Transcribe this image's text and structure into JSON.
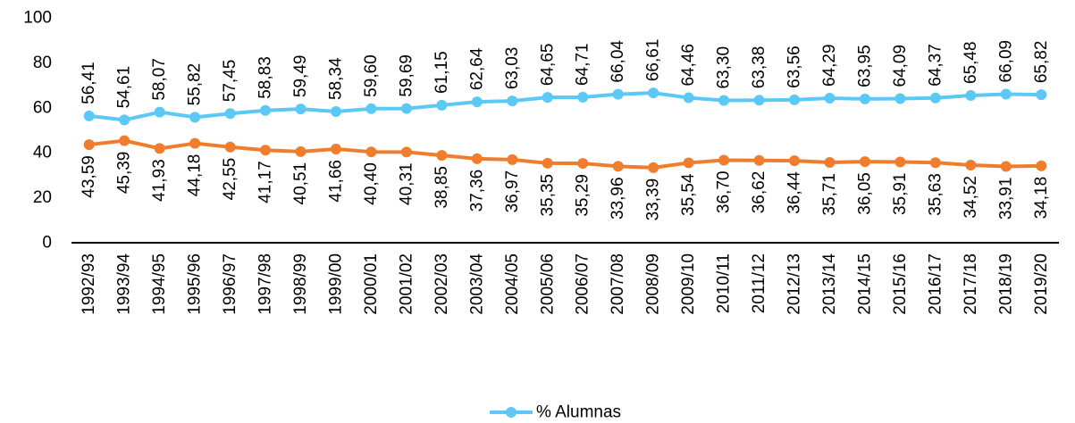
{
  "chart_data": {
    "type": "line",
    "title": "",
    "xlabel": "",
    "ylabel": "",
    "ylim": [
      0,
      100
    ],
    "yticks": [
      0,
      20,
      40,
      60,
      80,
      100
    ],
    "grid": false,
    "legend_position": "bottom",
    "categories": [
      "1992/93",
      "1993/94",
      "1994/95",
      "1995/96",
      "1996/97",
      "1997/98",
      "1998/99",
      "1999/00",
      "2000/01",
      "2001/02",
      "2002/03",
      "2003/04",
      "2004/05",
      "2005/06",
      "2006/07",
      "2007/08",
      "2008/09",
      "2009/10",
      "2010/11",
      "2011/12",
      "2012/13",
      "2013/14",
      "2014/15",
      "2015/16",
      "2016/17",
      "2017/18",
      "2018/19",
      "2019/20"
    ],
    "series": [
      {
        "name": "% Alumnas",
        "color": "#5BC8F5",
        "in_legend": true,
        "values": [
          56.41,
          54.61,
          58.07,
          55.82,
          57.45,
          58.83,
          59.49,
          58.34,
          59.6,
          59.69,
          61.15,
          62.64,
          63.03,
          64.65,
          64.71,
          66.04,
          66.61,
          64.46,
          63.3,
          63.38,
          63.56,
          64.29,
          63.95,
          64.09,
          64.37,
          65.48,
          66.09,
          65.82
        ],
        "labels": [
          "56,41",
          "54,61",
          "58,07",
          "55,82",
          "57,45",
          "58,83",
          "59,49",
          "58,34",
          "59,60",
          "59,69",
          "61,15",
          "62,64",
          "63,03",
          "64,65",
          "64,71",
          "66,04",
          "66,61",
          "64,46",
          "63,30",
          "63,38",
          "63,56",
          "64,29",
          "63,95",
          "64,09",
          "64,37",
          "65,48",
          "66,09",
          "65,82"
        ]
      },
      {
        "color": "#F07D2E",
        "in_legend": false,
        "values": [
          43.59,
          45.39,
          41.93,
          44.18,
          42.55,
          41.17,
          40.51,
          41.66,
          40.4,
          40.31,
          38.85,
          37.36,
          36.97,
          35.35,
          35.29,
          33.96,
          33.39,
          35.54,
          36.7,
          36.62,
          36.44,
          35.71,
          36.05,
          35.91,
          35.63,
          34.52,
          33.91,
          34.18
        ],
        "labels": [
          "43,59",
          "45,39",
          "41,93",
          "44,18",
          "42,55",
          "41,17",
          "40,51",
          "41,66",
          "40,40",
          "40,31",
          "38,85",
          "37,36",
          "36,97",
          "35,35",
          "35,29",
          "33,96",
          "33,39",
          "35,54",
          "36,70",
          "36,62",
          "36,44",
          "35,71",
          "36,05",
          "35,91",
          "35,63",
          "34,52",
          "33,91",
          "34,18"
        ]
      }
    ]
  }
}
